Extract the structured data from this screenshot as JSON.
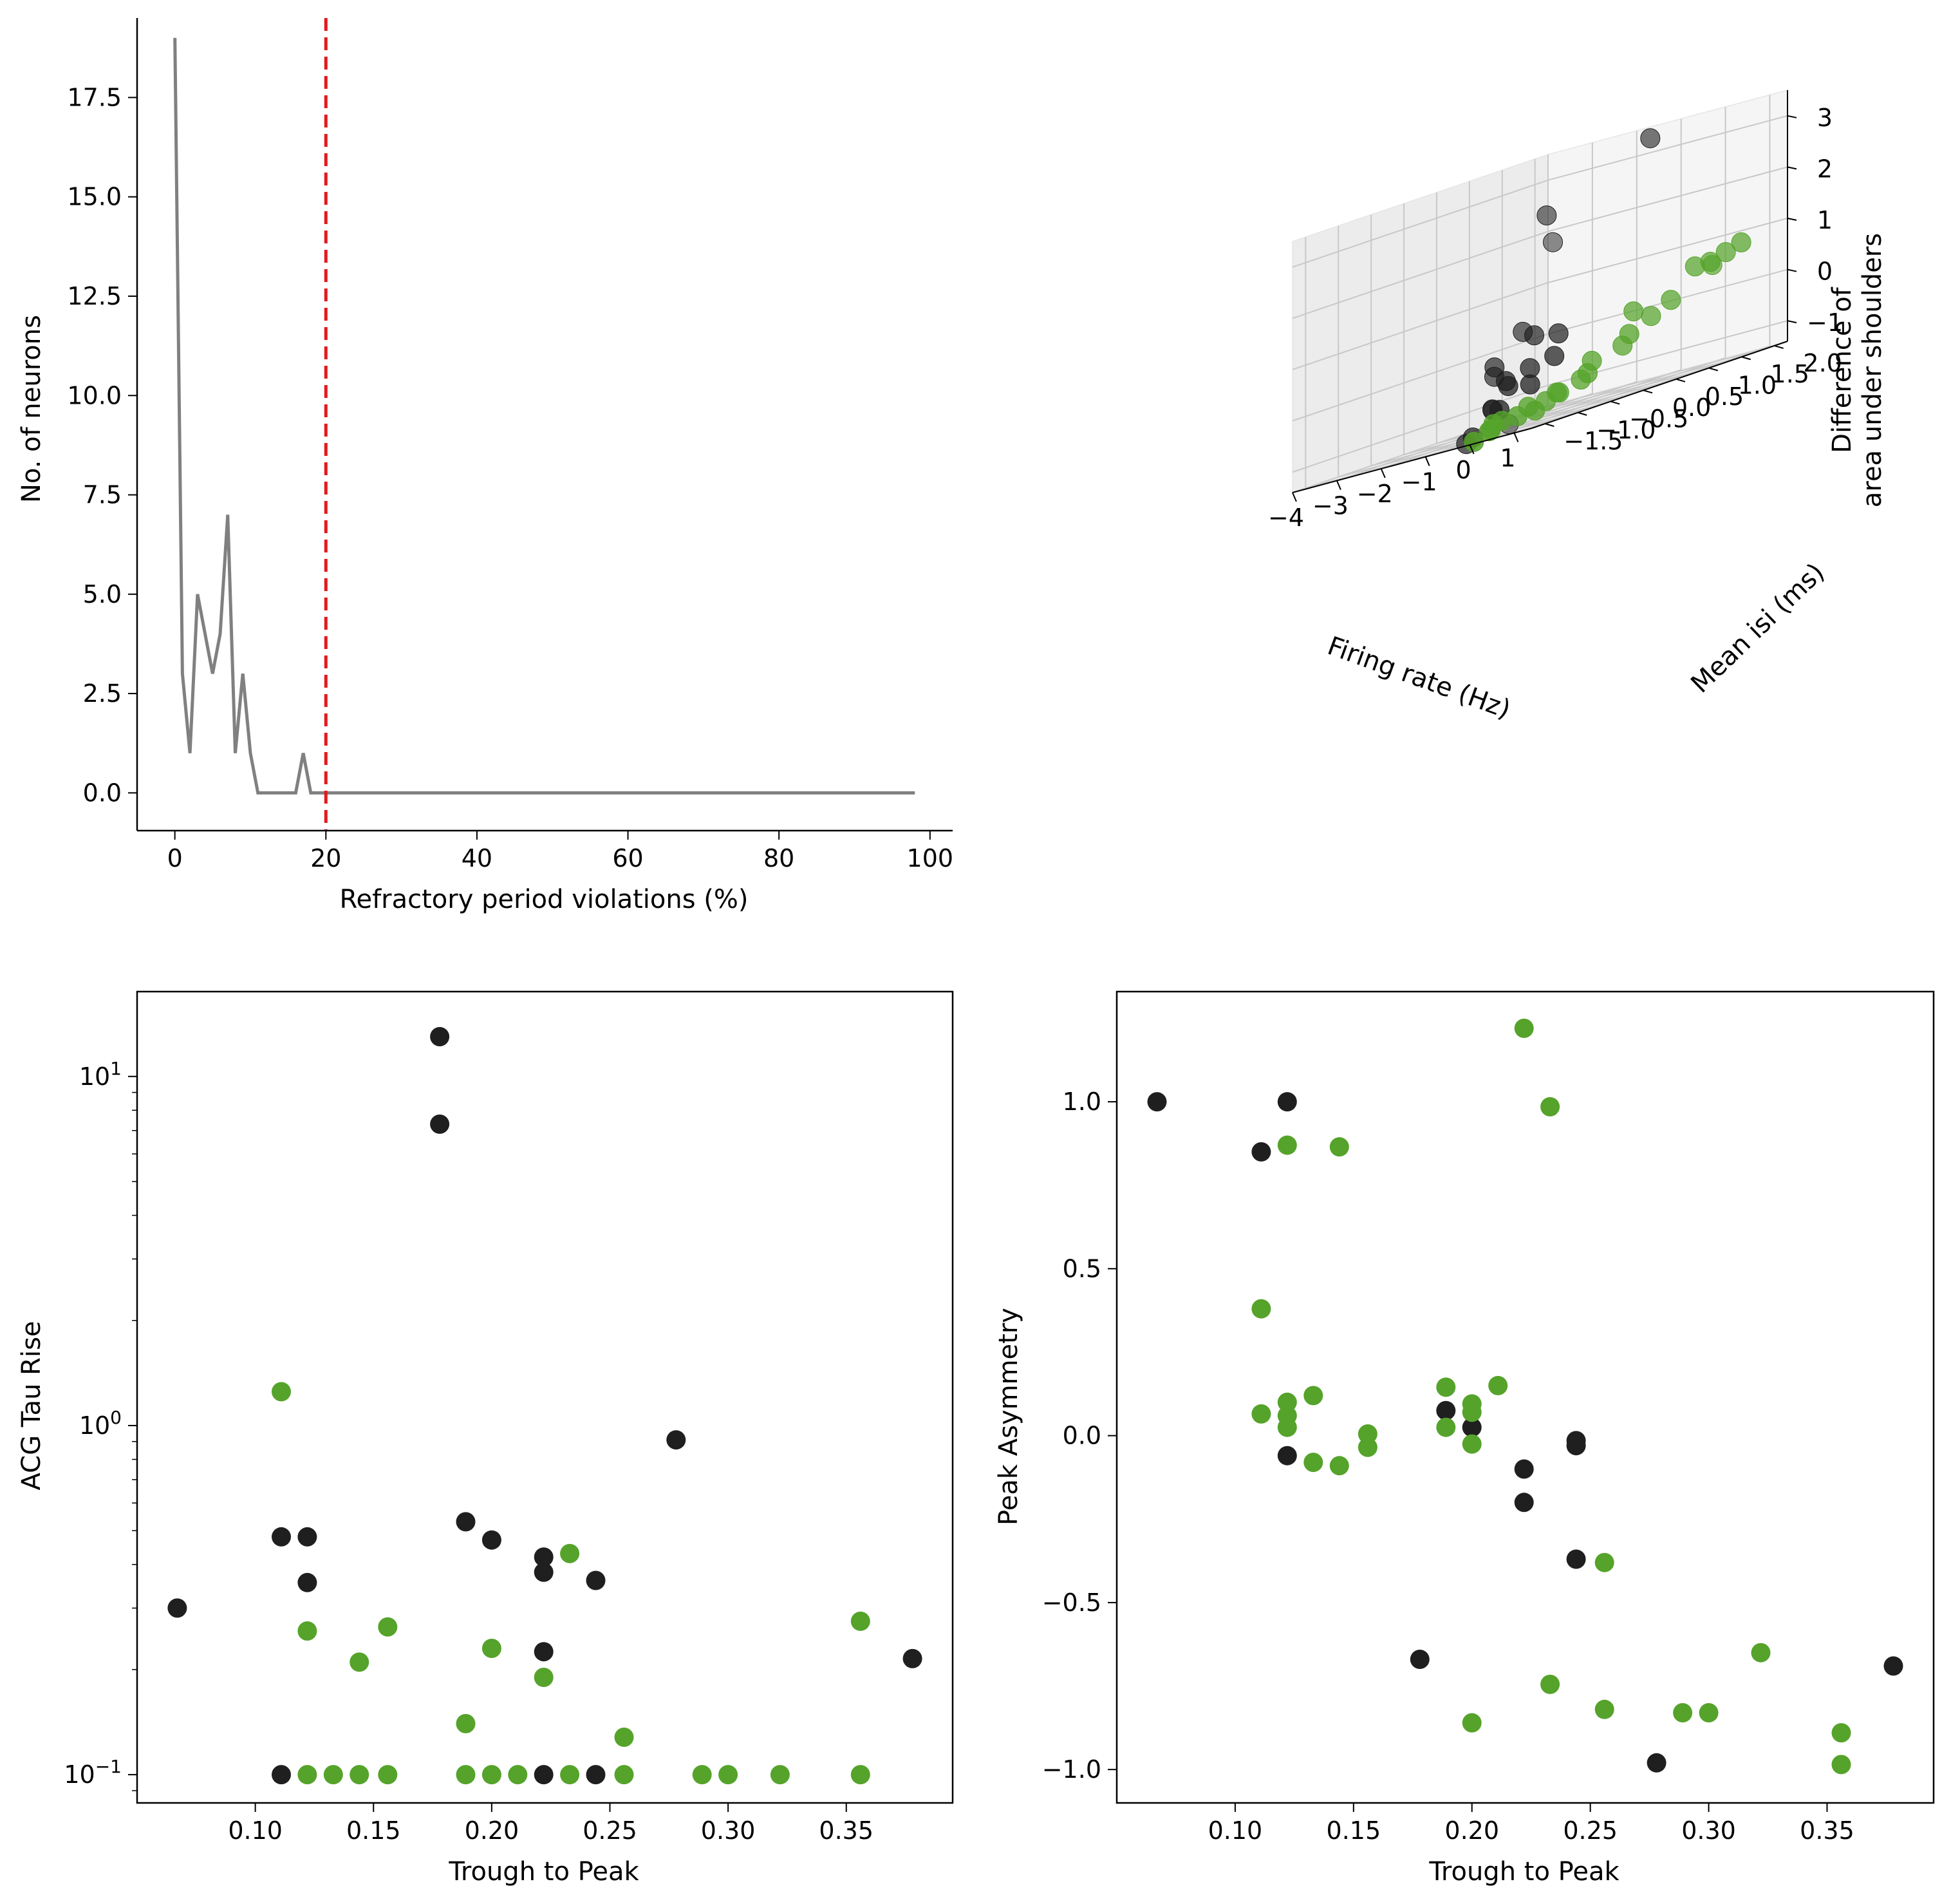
{
  "colors": {
    "black_cluster": "#1f1f1f",
    "green_cluster": "#55a32a",
    "hist_line": "#808080",
    "threshold_line": "#e31a1c"
  },
  "chart_data": [
    {
      "type": "line",
      "xlabel": "Refractory period violations (%)",
      "ylabel": "No. of neurons",
      "xlim": [
        -5,
        103
      ],
      "ylim": [
        -0.95,
        19.5
      ],
      "xticks": [
        0,
        20,
        40,
        60,
        80,
        100
      ],
      "xtick_labels": [
        "0",
        "20",
        "40",
        "60",
        "80",
        "100"
      ],
      "yticks": [
        0,
        2.5,
        5,
        7.5,
        10,
        12.5,
        15,
        17.5
      ],
      "ytick_labels": [
        "0.0",
        "2.5",
        "5.0",
        "7.5",
        "10.0",
        "12.5",
        "15.0",
        "17.5"
      ],
      "x": [
        0,
        1,
        2,
        3,
        4,
        5,
        6,
        7,
        8,
        9,
        10,
        11,
        12,
        13,
        14,
        15,
        16,
        17,
        18,
        20,
        30,
        40,
        50,
        60,
        70,
        80,
        90,
        98
      ],
      "y": [
        19,
        3,
        1,
        5,
        4,
        3,
        4,
        7,
        1,
        3,
        1,
        0,
        0,
        0,
        0,
        0,
        0,
        1,
        0,
        0,
        0,
        0,
        0,
        0,
        0,
        0,
        0,
        0
      ],
      "threshold_x": 20,
      "spines": "left-bottom"
    },
    {
      "type": "scatter",
      "projection": "3d",
      "xlabel": "Firing rate (Hz)",
      "ylabel": "Mean isi (ms)",
      "zlabel_lines": [
        "Difference of",
        "area under shoulders"
      ],
      "xticks": [
        -4,
        -3,
        -2,
        -1,
        0,
        1
      ],
      "xtick_labels": [
        "−4",
        "−3",
        "−2",
        "−1",
        "0",
        "1"
      ],
      "yticks": [
        -1.5,
        -1.0,
        -0.5,
        0.0,
        0.5,
        1.0,
        1.5,
        2.0
      ],
      "ytick_labels": [
        "−1.5",
        "−1.0",
        "−0.5",
        "0.0",
        "0.5",
        "1.0",
        "1.5",
        "2.0"
      ],
      "zticks": [
        -1,
        0,
        1,
        2,
        3
      ],
      "ztick_labels": [
        "−1",
        "0",
        "1",
        "2",
        "3"
      ],
      "xlim": [
        -4,
        1.4
      ],
      "ylim": [
        -1.7,
        2.2
      ],
      "zlim": [
        -1.4,
        3.5
      ],
      "series": [
        {
          "color_key": "black_cluster",
          "points": [
            [
              -4.0,
              1.6,
              -1.5
            ],
            [
              -3.3,
              1.8,
              1.8
            ],
            [
              -2.7,
              1.3,
              2.4
            ],
            [
              -1.4,
              2.0,
              3.3
            ],
            [
              -2.5,
              0.8,
              0.3
            ],
            [
              -2.7,
              0.5,
              -0.4
            ],
            [
              -2.4,
              0.3,
              -0.2
            ],
            [
              -1.8,
              0.5,
              0.2
            ],
            [
              -1.6,
              0.3,
              -0.4
            ],
            [
              -1.4,
              0.6,
              0.1
            ],
            [
              -1.7,
              0.0,
              -0.5
            ],
            [
              -1.5,
              -0.1,
              -0.6
            ],
            [
              -2.0,
              0.0,
              -1.0
            ],
            [
              -2.3,
              0.2,
              -1.0
            ],
            [
              -2.0,
              -0.3,
              -1.4
            ],
            [
              -2.3,
              -0.2,
              -1.5
            ],
            [
              -1.2,
              0.4,
              -0.3
            ],
            [
              -1.3,
              0.1,
              -0.7
            ],
            [
              -1.4,
              -0.3,
              -1.0
            ]
          ]
        },
        {
          "color_key": "green_cluster",
          "points": [
            [
              0.0,
              2.0,
              0.5
            ],
            [
              0.2,
              1.6,
              0.6
            ],
            [
              0.4,
              1.7,
              0.6
            ],
            [
              0.6,
              1.8,
              0.7
            ],
            [
              0.8,
              1.9,
              0.8
            ],
            [
              -0.3,
              1.0,
              0.1
            ],
            [
              0.1,
              1.3,
              0.1
            ],
            [
              -0.2,
              1.2,
              -0.1
            ],
            [
              -0.4,
              0.9,
              -0.5
            ],
            [
              -0.1,
              0.8,
              -0.3
            ],
            [
              -0.5,
              0.5,
              -0.6
            ],
            [
              -0.3,
              0.3,
              -0.8
            ],
            [
              -0.6,
              0.4,
              -0.9
            ],
            [
              -0.7,
              0.1,
              -1.0
            ],
            [
              -0.5,
              0.0,
              -1.0
            ],
            [
              -0.8,
              0.0,
              -1.1
            ],
            [
              -0.9,
              -0.2,
              -1.1
            ],
            [
              -0.6,
              -0.3,
              -1.2
            ],
            [
              -0.7,
              -0.5,
              -1.2
            ],
            [
              -0.9,
              -0.6,
              -1.2
            ],
            [
              -0.8,
              -0.8,
              -1.2
            ],
            [
              -1.0,
              -0.7,
              -1.3
            ],
            [
              -0.6,
              -1.0,
              -1.3
            ],
            [
              -0.5,
              -1.3,
              -1.4
            ]
          ]
        }
      ]
    },
    {
      "type": "scatter",
      "xlabel": "Trough to Peak",
      "ylabel": "ACG Tau Rise",
      "yscale": "log",
      "xlim": [
        0.05,
        0.395
      ],
      "ylim": [
        0.083,
        17.5
      ],
      "xticks": [
        0.1,
        0.15,
        0.2,
        0.25,
        0.3,
        0.35
      ],
      "xtick_labels": [
        "0.10",
        "0.15",
        "0.20",
        "0.25",
        "0.30",
        "0.35"
      ],
      "yticks": [
        0.1,
        1,
        10
      ],
      "ytick_labels": [
        [
          "10",
          "−1"
        ],
        [
          "10",
          "0"
        ],
        [
          "10",
          "1"
        ]
      ],
      "series": [
        {
          "color_key": "black_cluster",
          "points": [
            [
              0.067,
              0.3
            ],
            [
              0.111,
              0.48
            ],
            [
              0.122,
              0.48
            ],
            [
              0.122,
              0.355
            ],
            [
              0.111,
              0.1
            ],
            [
              0.178,
              13.0
            ],
            [
              0.178,
              7.3
            ],
            [
              0.189,
              0.53
            ],
            [
              0.2,
              0.47
            ],
            [
              0.222,
              0.42
            ],
            [
              0.222,
              0.38
            ],
            [
              0.222,
              0.225
            ],
            [
              0.222,
              0.1
            ],
            [
              0.244,
              0.36
            ],
            [
              0.244,
              0.1
            ],
            [
              0.278,
              0.91
            ],
            [
              0.378,
              0.215
            ]
          ]
        },
        {
          "color_key": "green_cluster",
          "points": [
            [
              0.111,
              1.25
            ],
            [
              0.122,
              0.258
            ],
            [
              0.122,
              0.1
            ],
            [
              0.133,
              0.1
            ],
            [
              0.144,
              0.21
            ],
            [
              0.144,
              0.1
            ],
            [
              0.156,
              0.265
            ],
            [
              0.156,
              0.1
            ],
            [
              0.189,
              0.14
            ],
            [
              0.189,
              0.1
            ],
            [
              0.2,
              0.23
            ],
            [
              0.2,
              0.1
            ],
            [
              0.211,
              0.1
            ],
            [
              0.222,
              0.19
            ],
            [
              0.233,
              0.43
            ],
            [
              0.233,
              0.1
            ],
            [
              0.256,
              0.128
            ],
            [
              0.256,
              0.1
            ],
            [
              0.289,
              0.1
            ],
            [
              0.3,
              0.1
            ],
            [
              0.322,
              0.1
            ],
            [
              0.356,
              0.275
            ],
            [
              0.356,
              0.1
            ]
          ]
        }
      ]
    },
    {
      "type": "scatter",
      "xlabel": "Trough to Peak",
      "ylabel": "Peak Asymmetry",
      "xlim": [
        0.05,
        0.395
      ],
      "ylim": [
        -1.1,
        1.33
      ],
      "xticks": [
        0.1,
        0.15,
        0.2,
        0.25,
        0.3,
        0.35
      ],
      "xtick_labels": [
        "0.10",
        "0.15",
        "0.20",
        "0.25",
        "0.30",
        "0.35"
      ],
      "yticks": [
        -1.0,
        -0.5,
        0.0,
        0.5,
        1.0
      ],
      "ytick_labels": [
        "−1.0",
        "−0.5",
        "0.0",
        "0.5",
        "1.0"
      ],
      "series": [
        {
          "color_key": "black_cluster",
          "points": [
            [
              0.067,
              1.0
            ],
            [
              0.111,
              0.85
            ],
            [
              0.122,
              1.0
            ],
            [
              0.122,
              -0.06
            ],
            [
              0.178,
              -0.67
            ],
            [
              0.189,
              0.075
            ],
            [
              0.2,
              0.025
            ],
            [
              0.222,
              -0.1
            ],
            [
              0.222,
              -0.2
            ],
            [
              0.244,
              -0.015
            ],
            [
              0.244,
              -0.03
            ],
            [
              0.244,
              -0.37
            ],
            [
              0.278,
              -0.98
            ],
            [
              0.378,
              -0.69
            ]
          ]
        },
        {
          "color_key": "green_cluster",
          "points": [
            [
              0.111,
              0.38
            ],
            [
              0.111,
              0.065
            ],
            [
              0.122,
              0.87
            ],
            [
              0.122,
              0.1
            ],
            [
              0.122,
              0.06
            ],
            [
              0.122,
              0.025
            ],
            [
              0.133,
              0.12
            ],
            [
              0.133,
              -0.08
            ],
            [
              0.144,
              0.865
            ],
            [
              0.144,
              -0.09
            ],
            [
              0.156,
              0.005
            ],
            [
              0.156,
              -0.035
            ],
            [
              0.189,
              0.145
            ],
            [
              0.189,
              0.025
            ],
            [
              0.2,
              0.095
            ],
            [
              0.2,
              0.07
            ],
            [
              0.2,
              -0.025
            ],
            [
              0.2,
              -0.86
            ],
            [
              0.211,
              0.15
            ],
            [
              0.222,
              1.22
            ],
            [
              0.233,
              0.985
            ],
            [
              0.233,
              -0.745
            ],
            [
              0.256,
              -0.38
            ],
            [
              0.256,
              -0.82
            ],
            [
              0.289,
              -0.83
            ],
            [
              0.3,
              -0.83
            ],
            [
              0.322,
              -0.65
            ],
            [
              0.356,
              -0.89
            ],
            [
              0.356,
              -0.985
            ]
          ]
        }
      ]
    }
  ]
}
